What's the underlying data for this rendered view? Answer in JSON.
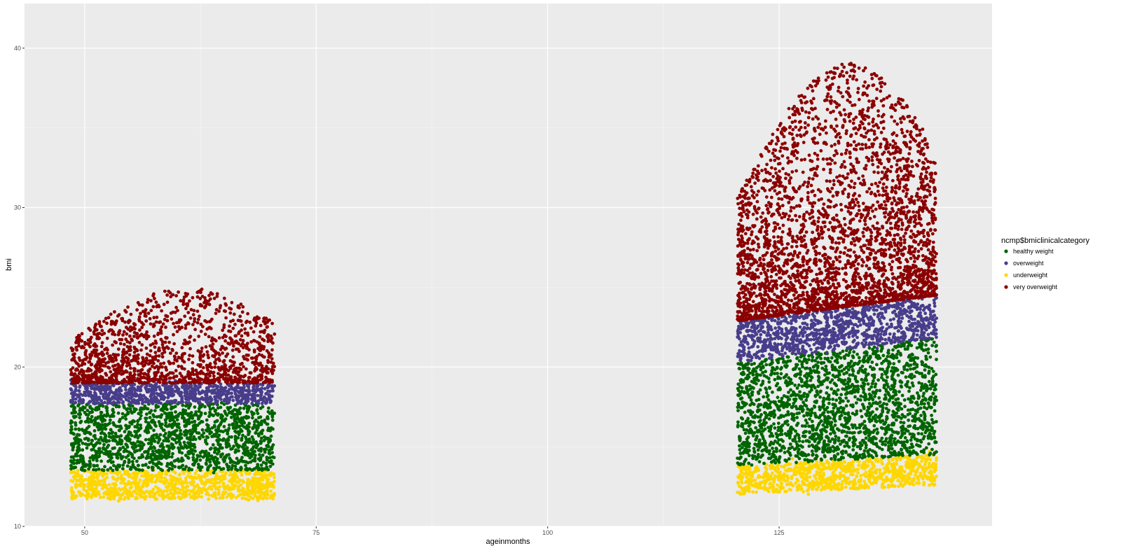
{
  "chart_data": {
    "type": "scatter",
    "xlabel": "ageinmonths",
    "ylabel": "bmi",
    "xlim": [
      43.5,
      148
    ],
    "ylim": [
      10,
      42.8
    ],
    "x_ticks": [
      50,
      75,
      100,
      125
    ],
    "y_ticks": [
      10,
      20,
      30,
      40
    ],
    "x_tick_labels": [
      "50",
      "75",
      "100",
      "125"
    ],
    "y_tick_labels": [
      "10",
      "20",
      "30",
      "40"
    ],
    "grid": true,
    "legend": {
      "title": "ncmp$bmiclinicalcategory",
      "placement": "right"
    },
    "series": [
      {
        "name": "healthy weight",
        "color": "#006400",
        "clusters": [
          {
            "x_range": [
              48.5,
              70.5
            ],
            "bmi_low_start": 13.5,
            "bmi_low_end": 13.5,
            "bmi_high_start": 17.7,
            "bmi_high_end": 17.7
          },
          {
            "x_range": [
              120.5,
              142
            ],
            "bmi_low_start": 13.8,
            "bmi_low_end": 14.5,
            "bmi_high_start": 20.3,
            "bmi_high_end": 21.8
          }
        ]
      },
      {
        "name": "overweight",
        "color": "#483D8B",
        "clusters": [
          {
            "x_range": [
              48.5,
              70.5
            ],
            "bmi_low_start": 17.7,
            "bmi_low_end": 17.7,
            "bmi_high_start": 19.0,
            "bmi_high_end": 19.0
          },
          {
            "x_range": [
              120.5,
              142
            ],
            "bmi_low_start": 20.3,
            "bmi_low_end": 21.8,
            "bmi_high_start": 22.9,
            "bmi_high_end": 24.5
          }
        ]
      },
      {
        "name": "underweight",
        "color": "#FFD700",
        "clusters": [
          {
            "x_range": [
              48.5,
              70.5
            ],
            "bmi_low_start": 11.7,
            "bmi_low_end": 11.7,
            "bmi_high_start": 13.5,
            "bmi_high_end": 13.5
          },
          {
            "x_range": [
              120.5,
              142
            ],
            "bmi_low_start": 12.0,
            "bmi_low_end": 12.6,
            "bmi_high_start": 13.8,
            "bmi_high_end": 14.5
          }
        ]
      },
      {
        "name": "very overweight",
        "color": "#8B0000",
        "clusters": [
          {
            "x_range": [
              48.5,
              70.5
            ],
            "bmi_low_start": 19.0,
            "bmi_low_end": 19.0,
            "bmi_high_start": 24.0,
            "bmi_high_end": 25.8
          },
          {
            "x_range": [
              120.5,
              142
            ],
            "bmi_low_start": 22.9,
            "bmi_low_end": 24.5,
            "bmi_high_start": 37.0,
            "bmi_high_end": 41.0
          }
        ]
      }
    ]
  }
}
